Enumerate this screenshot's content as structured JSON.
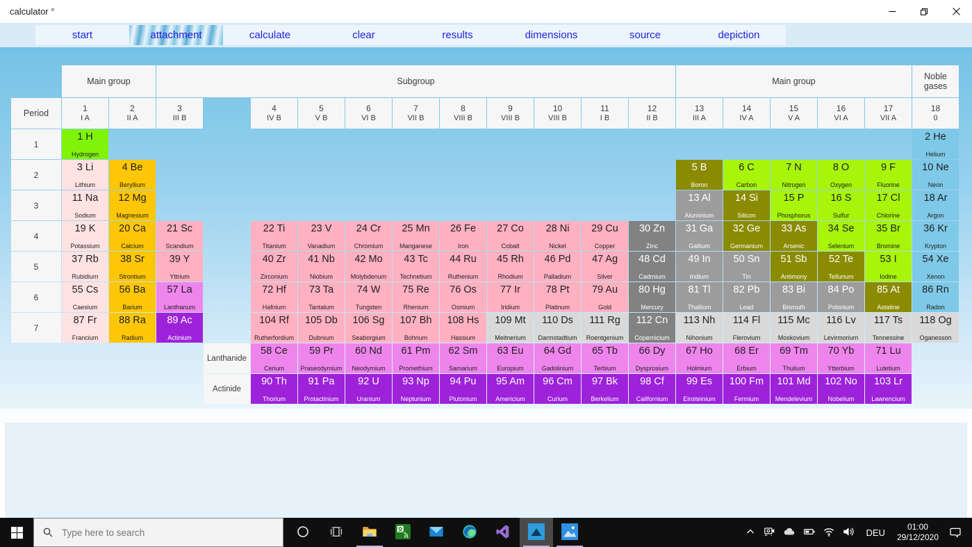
{
  "window": {
    "title": "calculator °"
  },
  "tabs": [
    {
      "label": "start",
      "active": false
    },
    {
      "label": "attachment",
      "active": true
    },
    {
      "label": "calculate",
      "active": false
    },
    {
      "label": "clear",
      "active": false
    },
    {
      "label": "results",
      "active": false
    },
    {
      "label": "dimensions",
      "active": false
    },
    {
      "label": "source",
      "active": false
    },
    {
      "label": "depiction",
      "active": false
    }
  ],
  "table": {
    "period_header": "Period",
    "span_headers": [
      "Main group",
      "Subgroup",
      "Main group",
      "Noble gases"
    ],
    "groups": [
      {
        "n": "1",
        "s": "I A"
      },
      {
        "n": "2",
        "s": "II A"
      },
      {
        "n": "3",
        "s": "III B"
      },
      {
        "n": "4",
        "s": "IV B"
      },
      {
        "n": "5",
        "s": "V B"
      },
      {
        "n": "6",
        "s": "VI B"
      },
      {
        "n": "7",
        "s": "VII B"
      },
      {
        "n": "8",
        "s": "VIII B"
      },
      {
        "n": "9",
        "s": "VIII B"
      },
      {
        "n": "10",
        "s": "VIII B"
      },
      {
        "n": "11",
        "s": "I B"
      },
      {
        "n": "12",
        "s": "II B"
      },
      {
        "n": "13",
        "s": "III A"
      },
      {
        "n": "14",
        "s": "IV A"
      },
      {
        "n": "15",
        "s": "V A"
      },
      {
        "n": "16",
        "s": "VI A"
      },
      {
        "n": "17",
        "s": "VII A"
      },
      {
        "n": "18",
        "s": "0"
      }
    ],
    "periods": [
      "1",
      "2",
      "3",
      "4",
      "5",
      "6",
      "7"
    ],
    "row_labels": [
      "Lanthanide",
      "Actinide"
    ],
    "elements": [
      {
        "t": "1 H",
        "n": "Hydrogen",
        "c": "hydrogen",
        "r": 1,
        "g": 1
      },
      {
        "t": "2 He",
        "n": "Helium",
        "c": "noble",
        "r": 1,
        "g": 18
      },
      {
        "t": "3 Li",
        "n": "Lithium",
        "c": "alkali",
        "r": 2,
        "g": 1
      },
      {
        "t": "4 Be",
        "n": "Beryllium",
        "c": "alkaline",
        "r": 2,
        "g": 2
      },
      {
        "t": "5 B",
        "n": "Boron",
        "c": "metalloid",
        "r": 2,
        "g": 13
      },
      {
        "t": "6 C",
        "n": "Carbon",
        "c": "nonmetal",
        "r": 2,
        "g": 14
      },
      {
        "t": "7 N",
        "n": "Nitrogen",
        "c": "nonmetal",
        "r": 2,
        "g": 15
      },
      {
        "t": "8 O",
        "n": "Oxygen",
        "c": "nonmetal",
        "r": 2,
        "g": 16
      },
      {
        "t": "9 F",
        "n": "Fluorine",
        "c": "nonmetal",
        "r": 2,
        "g": 17
      },
      {
        "t": "10 Ne",
        "n": "Neon",
        "c": "noble",
        "r": 2,
        "g": 18
      },
      {
        "t": "11 Na",
        "n": "Sodium",
        "c": "alkali",
        "r": 3,
        "g": 1
      },
      {
        "t": "12 Mg",
        "n": "Magnesium",
        "c": "alkaline",
        "r": 3,
        "g": 2
      },
      {
        "t": "13 Al",
        "n": "Aluminium",
        "c": "post",
        "r": 3,
        "g": 13
      },
      {
        "t": "14 Si",
        "n": "Silicon",
        "c": "metalloid",
        "r": 3,
        "g": 14
      },
      {
        "t": "15 P",
        "n": "Phosphorus",
        "c": "nonmetal",
        "r": 3,
        "g": 15
      },
      {
        "t": "16 S",
        "n": "Sulfur",
        "c": "nonmetal",
        "r": 3,
        "g": 16
      },
      {
        "t": "17 Cl",
        "n": "Chlorine",
        "c": "nonmetal",
        "r": 3,
        "g": 17
      },
      {
        "t": "18 Ar",
        "n": "Argon",
        "c": "noble",
        "r": 3,
        "g": 18
      },
      {
        "t": "19 K",
        "n": "Potassium",
        "c": "alkali",
        "r": 4,
        "g": 1
      },
      {
        "t": "20 Ca",
        "n": "Calcium",
        "c": "alkaline",
        "r": 4,
        "g": 2
      },
      {
        "t": "21 Sc",
        "n": "Scandium",
        "c": "transition",
        "r": 4,
        "g": 3
      },
      {
        "t": "22 Ti",
        "n": "Titanium",
        "c": "transition",
        "r": 4,
        "g": 4
      },
      {
        "t": "23 V",
        "n": "Vanadium",
        "c": "transition",
        "r": 4,
        "g": 5
      },
      {
        "t": "24 Cr",
        "n": "Chromium",
        "c": "transition",
        "r": 4,
        "g": 6
      },
      {
        "t": "25 Mn",
        "n": "Manganese",
        "c": "transition",
        "r": 4,
        "g": 7
      },
      {
        "t": "26 Fe",
        "n": "Iron",
        "c": "transition",
        "r": 4,
        "g": 8
      },
      {
        "t": "27 Co",
        "n": "Cobalt",
        "c": "transition",
        "r": 4,
        "g": 9
      },
      {
        "t": "28 Ni",
        "n": "Nickel",
        "c": "transition",
        "r": 4,
        "g": 10
      },
      {
        "t": "29 Cu",
        "n": "Copper",
        "c": "transition",
        "r": 4,
        "g": 11
      },
      {
        "t": "30 Zn",
        "n": "Zinc",
        "c": "zinc",
        "r": 4,
        "g": 12
      },
      {
        "t": "31 Ga",
        "n": "Gallium",
        "c": "post",
        "r": 4,
        "g": 13
      },
      {
        "t": "32 Ge",
        "n": "Germanium",
        "c": "metalloid",
        "r": 4,
        "g": 14
      },
      {
        "t": "33 As",
        "n": "Arsenic",
        "c": "metalloid",
        "r": 4,
        "g": 15
      },
      {
        "t": "34 Se",
        "n": "Selenium",
        "c": "nonmetal",
        "r": 4,
        "g": 16
      },
      {
        "t": "35 Br",
        "n": "Bromine",
        "c": "nonmetal",
        "r": 4,
        "g": 17
      },
      {
        "t": "36 Kr",
        "n": "Krypton",
        "c": "noble",
        "r": 4,
        "g": 18
      },
      {
        "t": "37 Rb",
        "n": "Rubidium",
        "c": "alkali",
        "r": 5,
        "g": 1
      },
      {
        "t": "38 Sr",
        "n": "Strontium",
        "c": "alkaline",
        "r": 5,
        "g": 2
      },
      {
        "t": "39 Y",
        "n": "Yttrium",
        "c": "transition",
        "r": 5,
        "g": 3
      },
      {
        "t": "40 Zr",
        "n": "Zirconium",
        "c": "transition",
        "r": 5,
        "g": 4
      },
      {
        "t": "41 Nb",
        "n": "Niobium",
        "c": "transition",
        "r": 5,
        "g": 5
      },
      {
        "t": "42 Mo",
        "n": "Molybdenum",
        "c": "transition",
        "r": 5,
        "g": 6
      },
      {
        "t": "43 Tc",
        "n": "Technetium",
        "c": "transition",
        "r": 5,
        "g": 7
      },
      {
        "t": "44 Ru",
        "n": "Ruthenium",
        "c": "transition",
        "r": 5,
        "g": 8
      },
      {
        "t": "45 Rh",
        "n": "Rhodium",
        "c": "transition",
        "r": 5,
        "g": 9
      },
      {
        "t": "46 Pd",
        "n": "Palladium",
        "c": "transition",
        "r": 5,
        "g": 10
      },
      {
        "t": "47 Ag",
        "n": "Silver",
        "c": "transition",
        "r": 5,
        "g": 11
      },
      {
        "t": "48 Cd",
        "n": "Cadmium",
        "c": "zinc",
        "r": 5,
        "g": 12
      },
      {
        "t": "49 In",
        "n": "Indium",
        "c": "post",
        "r": 5,
        "g": 13
      },
      {
        "t": "50 Sn",
        "n": "Tin",
        "c": "post",
        "r": 5,
        "g": 14
      },
      {
        "t": "51 Sb",
        "n": "Antimony",
        "c": "metalloid",
        "r": 5,
        "g": 15
      },
      {
        "t": "52 Te",
        "n": "Tellurium",
        "c": "metalloid",
        "r": 5,
        "g": 16
      },
      {
        "t": "53 I",
        "n": "Iodine",
        "c": "nonmetal",
        "r": 5,
        "g": 17
      },
      {
        "t": "54 Xe",
        "n": "Xenon",
        "c": "noble",
        "r": 5,
        "g": 18
      },
      {
        "t": "55 Cs",
        "n": "Caesium",
        "c": "alkali",
        "r": 6,
        "g": 1
      },
      {
        "t": "56 Ba",
        "n": "Barium",
        "c": "alkaline",
        "r": 6,
        "g": 2
      },
      {
        "t": "57 La",
        "n": "Lanthanum",
        "c": "lanthanide",
        "r": 6,
        "g": 3
      },
      {
        "t": "72 Hf",
        "n": "Hafnium",
        "c": "transition",
        "r": 6,
        "g": 4
      },
      {
        "t": "73 Ta",
        "n": "Tantalum",
        "c": "transition",
        "r": 6,
        "g": 5
      },
      {
        "t": "74 W",
        "n": "Tungsten",
        "c": "transition",
        "r": 6,
        "g": 6
      },
      {
        "t": "75 Re",
        "n": "Rhenium",
        "c": "transition",
        "r": 6,
        "g": 7
      },
      {
        "t": "76 Os",
        "n": "Osmium",
        "c": "transition",
        "r": 6,
        "g": 8
      },
      {
        "t": "77 Ir",
        "n": "Iridium",
        "c": "transition",
        "r": 6,
        "g": 9
      },
      {
        "t": "78 Pt",
        "n": "Platinum",
        "c": "transition",
        "r": 6,
        "g": 10
      },
      {
        "t": "79 Au",
        "n": "Gold",
        "c": "transition",
        "r": 6,
        "g": 11
      },
      {
        "t": "80 Hg",
        "n": "Mercury",
        "c": "zinc",
        "r": 6,
        "g": 12
      },
      {
        "t": "81 Tl",
        "n": "Thallium",
        "c": "post",
        "r": 6,
        "g": 13
      },
      {
        "t": "82 Pb",
        "n": "Lead",
        "c": "post",
        "r": 6,
        "g": 14
      },
      {
        "t": "83 Bi",
        "n": "Bismuth",
        "c": "post",
        "r": 6,
        "g": 15
      },
      {
        "t": "84 Po",
        "n": "Polonium",
        "c": "post",
        "r": 6,
        "g": 16
      },
      {
        "t": "85 At",
        "n": "Astatine",
        "c": "metalloid",
        "r": 6,
        "g": 17
      },
      {
        "t": "86 Rn",
        "n": "Radon",
        "c": "noble",
        "r": 6,
        "g": 18
      },
      {
        "t": "87 Fr",
        "n": "Francium",
        "c": "alkali",
        "r": 7,
        "g": 1
      },
      {
        "t": "88 Ra",
        "n": "Radium",
        "c": "alkaline",
        "r": 7,
        "g": 2
      },
      {
        "t": "89 Ac",
        "n": "Actinium",
        "c": "actinide",
        "r": 7,
        "g": 3
      },
      {
        "t": "104 Rf",
        "n": "Rutherfordium",
        "c": "transition",
        "r": 7,
        "g": 4
      },
      {
        "t": "105 Db",
        "n": "Dubnium",
        "c": "transition",
        "r": 7,
        "g": 5
      },
      {
        "t": "106 Sg",
        "n": "Seaborgium",
        "c": "transition",
        "r": 7,
        "g": 6
      },
      {
        "t": "107 Bh",
        "n": "Bohrium",
        "c": "transition",
        "r": 7,
        "g": 7
      },
      {
        "t": "108 Hs",
        "n": "Hassium",
        "c": "transition",
        "r": 7,
        "g": 8
      },
      {
        "t": "109 Mt",
        "n": "Meitnerium",
        "c": "unknown",
        "r": 7,
        "g": 9
      },
      {
        "t": "110 Ds",
        "n": "Darmstadtium",
        "c": "unknown",
        "r": 7,
        "g": 10
      },
      {
        "t": "111 Rg",
        "n": "Roentgenium",
        "c": "unknown",
        "r": 7,
        "g": 11
      },
      {
        "t": "112 Cn",
        "n": "Copernicium",
        "c": "zinc",
        "r": 7,
        "g": 12
      },
      {
        "t": "113 Nh",
        "n": "Nihonium",
        "c": "unknown",
        "r": 7,
        "g": 13
      },
      {
        "t": "114 Fl",
        "n": "Flerovium",
        "c": "unknown",
        "r": 7,
        "g": 14
      },
      {
        "t": "115 Mc",
        "n": "Moskovium",
        "c": "unknown",
        "r": 7,
        "g": 15
      },
      {
        "t": "116 Lv",
        "n": "Levirmorium",
        "c": "unknown",
        "r": 7,
        "g": 16
      },
      {
        "t": "117 Ts",
        "n": "Tennessine",
        "c": "unknown",
        "r": 7,
        "g": 17
      },
      {
        "t": "118 Og",
        "n": "Oganesson",
        "c": "unknown",
        "r": 7,
        "g": 18
      },
      {
        "t": "58 Ce",
        "n": "Cerium",
        "c": "lanthanide",
        "r": 8,
        "g": 4
      },
      {
        "t": "59 Pr",
        "n": "Praseodymium",
        "c": "lanthanide",
        "r": 8,
        "g": 5
      },
      {
        "t": "60 Nd",
        "n": "Neodymium",
        "c": "lanthanide",
        "r": 8,
        "g": 6
      },
      {
        "t": "61 Pm",
        "n": "Promethium",
        "c": "lanthanide",
        "r": 8,
        "g": 7
      },
      {
        "t": "62 Sm",
        "n": "Samarium",
        "c": "lanthanide",
        "r": 8,
        "g": 8
      },
      {
        "t": "63 Eu",
        "n": "Europium",
        "c": "lanthanide",
        "r": 8,
        "g": 9
      },
      {
        "t": "64 Gd",
        "n": "Gadolinium",
        "c": "lanthanide",
        "r": 8,
        "g": 10
      },
      {
        "t": "65 Tb",
        "n": "Terbium",
        "c": "lanthanide",
        "r": 8,
        "g": 11
      },
      {
        "t": "66 Dy",
        "n": "Dysprosium",
        "c": "lanthanide",
        "r": 8,
        "g": 12
      },
      {
        "t": "67 Ho",
        "n": "Holmium",
        "c": "lanthanide",
        "r": 8,
        "g": 13
      },
      {
        "t": "68 Er",
        "n": "Erbium",
        "c": "lanthanide",
        "r": 8,
        "g": 14
      },
      {
        "t": "69 Tm",
        "n": "Thulium",
        "c": "lanthanide",
        "r": 8,
        "g": 15
      },
      {
        "t": "70 Yb",
        "n": "Ytterbium",
        "c": "lanthanide",
        "r": 8,
        "g": 16
      },
      {
        "t": "71 Lu",
        "n": "Lutetium",
        "c": "lanthanide",
        "r": 8,
        "g": 17
      },
      {
        "t": "90 Th",
        "n": "Thorium",
        "c": "actinide",
        "r": 9,
        "g": 4
      },
      {
        "t": "91 Pa",
        "n": "Protactinium",
        "c": "actinide",
        "r": 9,
        "g": 5
      },
      {
        "t": "92 U",
        "n": "Uranium",
        "c": "actinide",
        "r": 9,
        "g": 6
      },
      {
        "t": "93 Np",
        "n": "Neptunium",
        "c": "actinide",
        "r": 9,
        "g": 7
      },
      {
        "t": "94 Pu",
        "n": "Plutonium",
        "c": "actinide",
        "r": 9,
        "g": 8
      },
      {
        "t": "95 Am",
        "n": "Americium",
        "c": "actinide",
        "r": 9,
        "g": 9
      },
      {
        "t": "96 Cm",
        "n": "Curium",
        "c": "actinide",
        "r": 9,
        "g": 10
      },
      {
        "t": "97 Bk",
        "n": "Berkelium",
        "c": "actinide",
        "r": 9,
        "g": 11
      },
      {
        "t": "98 Cf",
        "n": "Californium",
        "c": "actinide",
        "r": 9,
        "g": 12
      },
      {
        "t": "99 Es",
        "n": "Einsteinium",
        "c": "actinide",
        "r": 9,
        "g": 13
      },
      {
        "t": "100 Fm",
        "n": "Fermium",
        "c": "actinide",
        "r": 9,
        "g": 14
      },
      {
        "t": "101 Md",
        "n": "Mendelevium",
        "c": "actinide",
        "r": 9,
        "g": 15
      },
      {
        "t": "102 No",
        "n": "Nobelium",
        "c": "actinide",
        "r": 9,
        "g": 16
      },
      {
        "t": "103 Lr",
        "n": "Lawrencium",
        "c": "actinide",
        "r": 9,
        "g": 17
      }
    ]
  },
  "categories": {
    "hydrogen": {
      "bg": "#80F408",
      "fg": "#1F1F1F"
    },
    "nonmetal": {
      "bg": "#A8F40B",
      "fg": "#1F1F1F"
    },
    "alkali": {
      "bg": "#FFE2E2",
      "fg": "#1F1F1F"
    },
    "alkaline": {
      "bg": "#FDC607",
      "fg": "#1F1F1F"
    },
    "transition": {
      "bg": "#FFB1C1",
      "fg": "#1F1F1F"
    },
    "zinc": {
      "bg": "#828282",
      "fg": "#FFFFFF"
    },
    "post": {
      "bg": "#9C9C9C",
      "fg": "#FFFFFF"
    },
    "metalloid": {
      "bg": "#8A8B00",
      "fg": "#FFFFFF"
    },
    "noble": {
      "bg": "#7FC9E8",
      "fg": "#1F1F1F"
    },
    "lanthanide": {
      "bg": "#EE85EC",
      "fg": "#1F1F1F"
    },
    "actinide": {
      "bg": "#9D22DA",
      "fg": "#FFFFFF"
    },
    "unknown": {
      "bg": "#D9D9D9",
      "fg": "#1F1F1F"
    }
  },
  "taskbar": {
    "search_placeholder": "Type here to search",
    "language": "DEU",
    "time": "01:00",
    "date": "29/12/2020",
    "app_icons": [
      {
        "icon": "cortana-icon",
        "running": false,
        "active": false
      },
      {
        "icon": "task-view-icon",
        "running": false,
        "active": false
      },
      {
        "icon": "file-explorer-icon",
        "running": true,
        "active": false
      },
      {
        "icon": "translator-icon",
        "running": false,
        "active": false
      },
      {
        "icon": "mail-icon",
        "running": false,
        "active": false
      },
      {
        "icon": "edge-icon",
        "running": false,
        "active": false
      },
      {
        "icon": "visual-studio-icon",
        "running": false,
        "active": false
      },
      {
        "icon": "periodic-table-app-icon",
        "running": true,
        "active": true
      },
      {
        "icon": "photos-icon",
        "running": true,
        "active": false
      }
    ],
    "tray_icons": [
      "chevron-up-icon",
      "meet-now-icon",
      "onedrive-icon",
      "battery-icon",
      "wifi-icon",
      "volume-icon"
    ]
  }
}
